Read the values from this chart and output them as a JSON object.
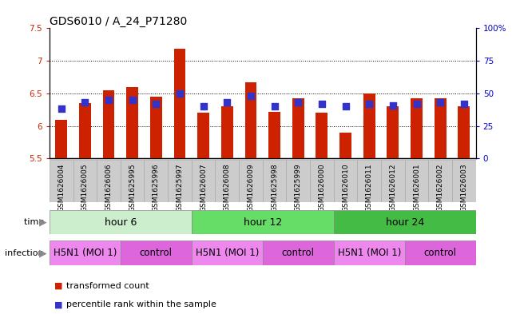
{
  "title": "GDS6010 / A_24_P71280",
  "samples": [
    "GSM1626004",
    "GSM1626005",
    "GSM1626006",
    "GSM1625995",
    "GSM1625996",
    "GSM1625997",
    "GSM1626007",
    "GSM1626008",
    "GSM1626009",
    "GSM1625998",
    "GSM1625999",
    "GSM1626000",
    "GSM1626010",
    "GSM1626011",
    "GSM1626012",
    "GSM1626001",
    "GSM1626002",
    "GSM1626003"
  ],
  "transformed_counts": [
    6.1,
    6.35,
    6.55,
    6.6,
    6.45,
    7.18,
    6.2,
    6.3,
    6.67,
    6.22,
    6.42,
    6.2,
    5.9,
    6.5,
    6.3,
    6.42,
    6.42,
    6.3
  ],
  "percentile_ranks": [
    38,
    43,
    45,
    45,
    42,
    50,
    40,
    43,
    48,
    40,
    43,
    42,
    40,
    42,
    41,
    42,
    43,
    42
  ],
  "ylim_left": [
    5.5,
    7.5
  ],
  "ylim_right": [
    0,
    100
  ],
  "yticks_left": [
    5.5,
    6.0,
    6.5,
    7.0,
    7.5
  ],
  "ytick_labels_left": [
    "5.5",
    "6",
    "6.5",
    "7",
    "7.5"
  ],
  "yticks_right": [
    0,
    25,
    50,
    75,
    100
  ],
  "ytick_labels_right": [
    "0",
    "25",
    "50",
    "75",
    "100%"
  ],
  "hlines": [
    6.0,
    6.5,
    7.0
  ],
  "bar_color": "#cc2200",
  "dot_color": "#3333cc",
  "bar_width": 0.5,
  "dot_size": 28,
  "time_groups": [
    {
      "label": "hour 6",
      "start": 0,
      "end": 6,
      "color": "#cceecc"
    },
    {
      "label": "hour 12",
      "start": 6,
      "end": 12,
      "color": "#66dd66"
    },
    {
      "label": "hour 24",
      "start": 12,
      "end": 18,
      "color": "#44bb44"
    }
  ],
  "infection_groups": [
    {
      "label": "H5N1 (MOI 1)",
      "start": 0,
      "end": 3,
      "color": "#ee88ee"
    },
    {
      "label": "control",
      "start": 3,
      "end": 6,
      "color": "#dd66dd"
    },
    {
      "label": "H5N1 (MOI 1)",
      "start": 6,
      "end": 9,
      "color": "#ee88ee"
    },
    {
      "label": "control",
      "start": 9,
      "end": 12,
      "color": "#dd66dd"
    },
    {
      "label": "H5N1 (MOI 1)",
      "start": 12,
      "end": 15,
      "color": "#ee88ee"
    },
    {
      "label": "control",
      "start": 15,
      "end": 18,
      "color": "#dd66dd"
    }
  ],
  "time_label": "time",
  "infection_label": "infection",
  "legend_items": [
    {
      "label": "transformed count",
      "color": "#cc2200",
      "marker": "s"
    },
    {
      "label": "percentile rank within the sample",
      "color": "#3333cc",
      "marker": "s"
    }
  ],
  "title_fontsize": 10,
  "tick_fontsize": 7.5,
  "sample_fontsize": 6.5,
  "group_label_fontsize": 9,
  "row_label_fontsize": 8,
  "legend_fontsize": 8,
  "sample_box_color": "#cccccc",
  "left_axis_color": "#cc2200",
  "right_axis_color": "#0000cc"
}
